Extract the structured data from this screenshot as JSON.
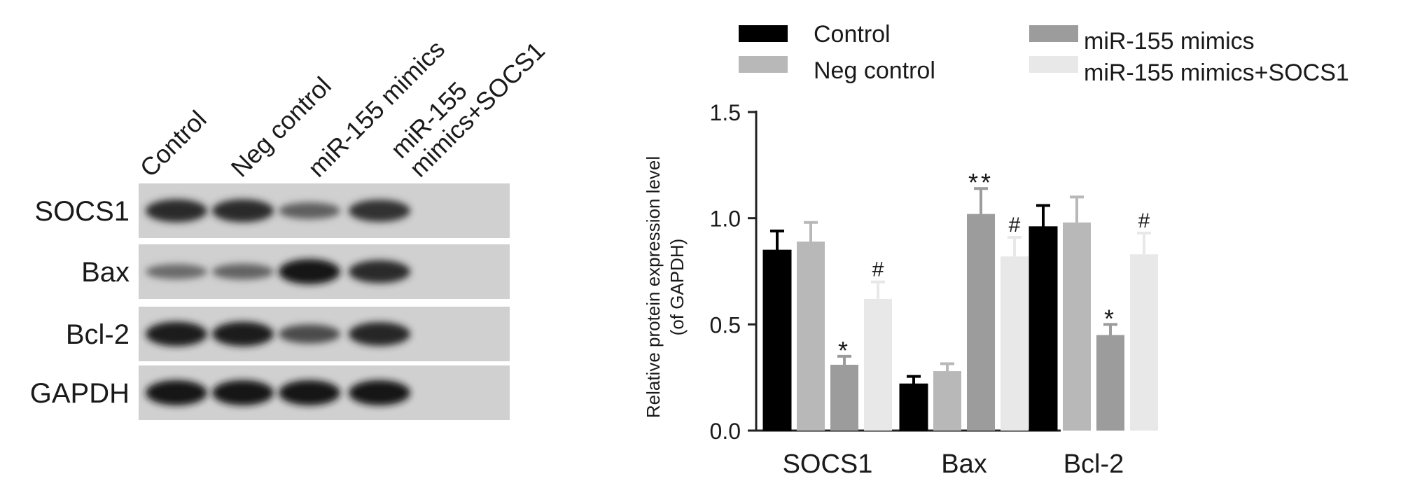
{
  "blot": {
    "lanes": [
      "Control",
      "Neg    control",
      "miR-155 mimics",
      "miR-155 mimics+SOCS1"
    ],
    "lane_label_lines": [
      [
        "Control"
      ],
      [
        "Neg    control"
      ],
      [
        "miR-155 mimics"
      ],
      [
        "miR-155",
        "mimics+SOCS1"
      ]
    ],
    "rows": [
      {
        "label": "SOCS1",
        "intensity": [
          0.85,
          0.85,
          0.45,
          0.8
        ]
      },
      {
        "label": "Bax",
        "intensity": [
          0.35,
          0.4,
          1.0,
          0.85
        ]
      },
      {
        "label": "Bcl-2",
        "intensity": [
          0.95,
          0.95,
          0.6,
          0.9
        ]
      },
      {
        "label": "GAPDH",
        "intensity": [
          1.0,
          1.0,
          1.0,
          1.0
        ]
      }
    ]
  },
  "chart_data": {
    "type": "bar",
    "categories": [
      "SOCS1",
      "Bax",
      "Bcl-2"
    ],
    "series": [
      {
        "name": "Control",
        "color": "#000000",
        "values": [
          0.85,
          0.22,
          0.96
        ],
        "errors": [
          0.09,
          0.035,
          0.1
        ],
        "marks": [
          "",
          "",
          ""
        ]
      },
      {
        "name": "Neg    control",
        "color": "#b8b8b8",
        "values": [
          0.89,
          0.28,
          0.98
        ],
        "errors": [
          0.09,
          0.035,
          0.12
        ],
        "marks": [
          "",
          "",
          ""
        ]
      },
      {
        "name": "miR-155 mimics",
        "color": "#9c9c9c",
        "values": [
          0.31,
          1.02,
          0.45
        ],
        "errors": [
          0.04,
          0.12,
          0.05
        ],
        "marks": [
          "*",
          "**",
          "*"
        ]
      },
      {
        "name": "miR-155 mimics+SOCS1",
        "color": "#e8e8e8",
        "values": [
          0.62,
          0.82,
          0.83
        ],
        "errors": [
          0.08,
          0.09,
          0.1
        ],
        "marks": [
          "#",
          "#",
          "#"
        ]
      }
    ],
    "xlabel": "",
    "ylabel": "Relative protein expression level",
    "ylabel_line2": "(of GAPDH)",
    "ylim": [
      0,
      1.5
    ],
    "yticks": [
      "0.0",
      "0.5",
      "1.0",
      "1.5"
    ],
    "grid": false,
    "legend_position": "top"
  }
}
